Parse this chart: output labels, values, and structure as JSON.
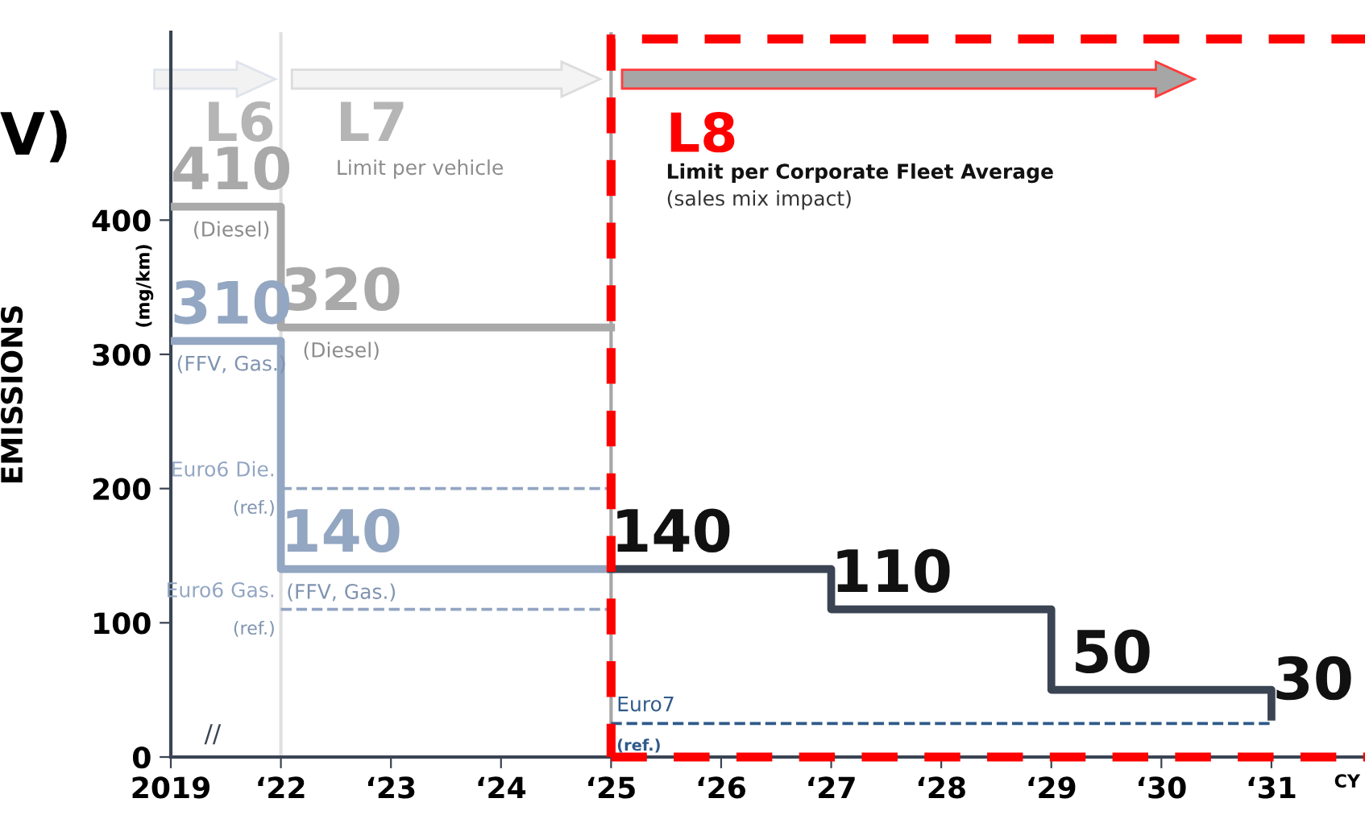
{
  "chart_data": {
    "type": "step",
    "ylabel": "EMISSIONS",
    "categories": [
      "2019",
      "‘22",
      "‘23",
      "‘24",
      "‘25",
      "‘26",
      "‘27",
      "‘28",
      "‘29",
      "‘30",
      "‘31"
    ],
    "ylim": [
      0,
      540
    ],
    "yticks": [
      0,
      100,
      200,
      300,
      400
    ],
    "grid": false,
    "series": [
      {
        "color": "#a9a9a9",
        "values": [
          410,
          320,
          320,
          320,
          320,
          null,
          null,
          null,
          null,
          null,
          null
        ],
        "value_labels": [
          "410",
          "320",
          null,
          null,
          null,
          null,
          null,
          null,
          null,
          null,
          null
        ]
      },
      {
        "color": "#93a6c2",
        "values": [
          310,
          140,
          140,
          140,
          140,
          null,
          null,
          null,
          null,
          null,
          null
        ],
        "value_labels": [
          "310",
          "140",
          null,
          null,
          null,
          null,
          null,
          null,
          null,
          null,
          null
        ]
      },
      {
        "color": "#3b4453",
        "values": [
          null,
          null,
          null,
          null,
          140,
          140,
          110,
          110,
          50,
          50,
          30
        ],
        "value_labels": [
          null,
          null,
          null,
          null,
          "140",
          null,
          "110",
          null,
          "50",
          null,
          "30"
        ]
      },
      {
        "type": "line",
        "name": "Euro6 Die.",
        "color": "#93a6c2",
        "line_style": "dashed",
        "values": [
          null,
          200,
          200,
          200,
          200,
          null,
          null,
          null,
          null,
          null,
          null
        ]
      },
      {
        "type": "line",
        "name": "Euro6 Gas.",
        "color": "#93a6c2",
        "line_style": "dashed",
        "values": [
          null,
          110,
          110,
          110,
          110,
          null,
          null,
          null,
          null,
          null,
          null
        ]
      },
      {
        "type": "line",
        "name": "Euro7",
        "color": "#2f5a8a",
        "line_style": "dashed",
        "values": [
          null,
          null,
          null,
          null,
          25,
          25,
          25,
          25,
          25,
          25,
          25
        ]
      }
    ],
    "ref_lines": [
      {
        "axis": "x",
        "value": "‘22",
        "color": "#e0e0e0"
      },
      {
        "axis": "x",
        "value": "‘25",
        "color": "#a6a6a6"
      }
    ],
    "annotations": [
      "V)",
      "(mg/km)",
      "CY",
      "//",
      "L6",
      "L7",
      "Limit per vehicle",
      "L8",
      "Limit per Corporate Fleet Average",
      "(sales mix impact)",
      "(Diesel)",
      "(Diesel)",
      "(FFV, Gas.)",
      "(FFV, Gas.)",
      "(ref.)",
      "(ref.)",
      "(ref.)"
    ]
  }
}
